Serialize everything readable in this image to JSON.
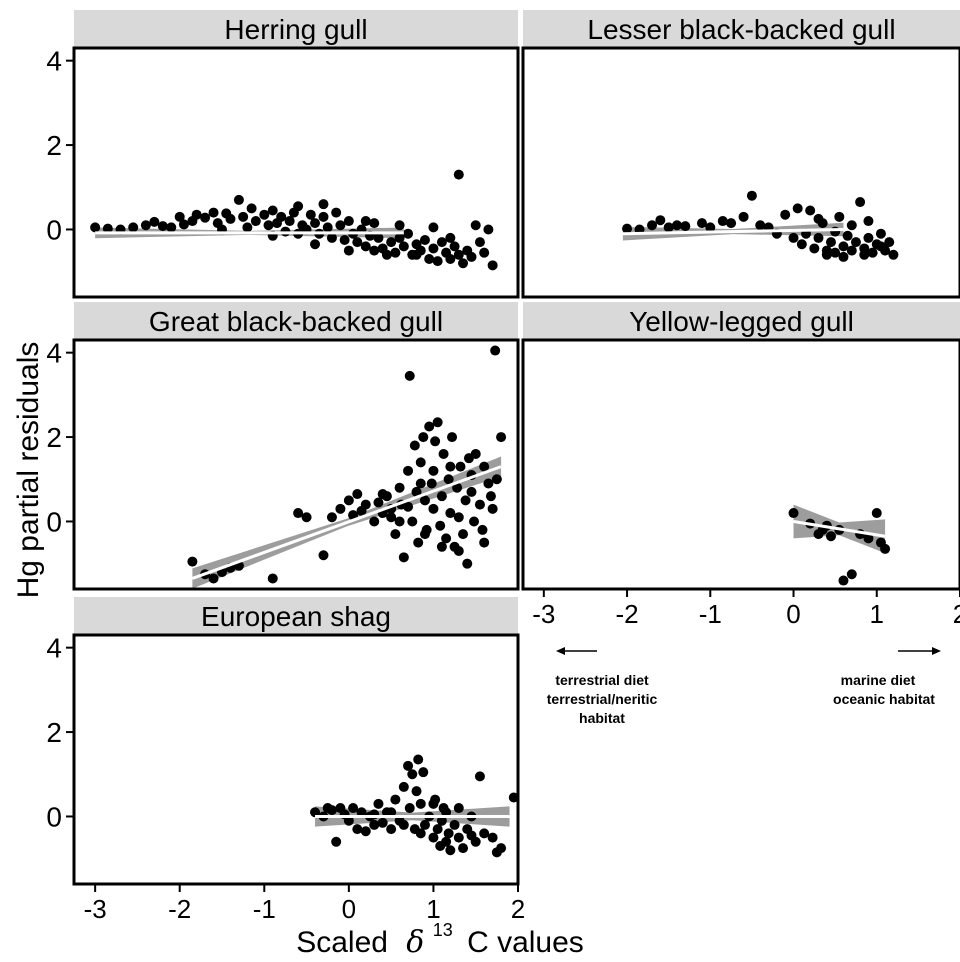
{
  "chart_data": {
    "type": "scatter",
    "ylabel": "Hg partial residuals",
    "xlabel": {
      "prefix": "Scaled",
      "symbol": "δ",
      "superscript": "13",
      "suffix": "C values"
    },
    "xlim": [
      -3.25,
      2.0
    ],
    "ylim": [
      -1.6,
      4.3
    ],
    "x_ticks": [
      -3,
      -2,
      -1,
      0,
      1,
      2
    ],
    "y_ticks": [
      0,
      2,
      4
    ],
    "colors": {
      "points": "#000000",
      "band": "#8c8c8c",
      "fit": "#ffffff",
      "strip": "#d9d9d9"
    },
    "annotations": {
      "left": [
        "terrestrial diet",
        "terrestrial/neritic",
        "habitat"
      ],
      "right": [
        "marine diet",
        "oceanic habitat"
      ]
    },
    "panels": [
      {
        "title": "Herring gull",
        "fit": {
          "x": [
            -3.0,
            0.65
          ],
          "y": [
            -0.08,
            -0.08
          ],
          "se": 0.08
        },
        "points": [
          [
            -3.0,
            0.05
          ],
          [
            -2.85,
            0.02
          ],
          [
            -2.7,
            0.0
          ],
          [
            -2.55,
            0.05
          ],
          [
            -2.4,
            0.1
          ],
          [
            -2.3,
            0.18
          ],
          [
            -2.2,
            0.08
          ],
          [
            -2.1,
            0.05
          ],
          [
            -2.0,
            0.3
          ],
          [
            -1.95,
            0.12
          ],
          [
            -1.85,
            0.2
          ],
          [
            -1.8,
            0.35
          ],
          [
            -1.7,
            0.28
          ],
          [
            -1.6,
            0.4
          ],
          [
            -1.55,
            0.15
          ],
          [
            -1.45,
            0.38
          ],
          [
            -1.4,
            0.25
          ],
          [
            -1.3,
            0.7
          ],
          [
            -1.25,
            0.3
          ],
          [
            -1.2,
            0.05
          ],
          [
            -1.15,
            0.5
          ],
          [
            -1.1,
            0.2
          ],
          [
            -1.0,
            0.35
          ],
          [
            -0.95,
            0.1
          ],
          [
            -0.9,
            0.45
          ],
          [
            -0.85,
            0.15
          ],
          [
            -0.8,
            0.3
          ],
          [
            -0.75,
            -0.05
          ],
          [
            -0.7,
            0.2
          ],
          [
            -0.65,
            0.4
          ],
          [
            -0.6,
            0.55
          ],
          [
            -0.55,
            0.1
          ],
          [
            -0.5,
            0.0
          ],
          [
            -0.45,
            0.35
          ],
          [
            -0.4,
            0.15
          ],
          [
            -0.35,
            -0.1
          ],
          [
            -0.3,
            0.3
          ],
          [
            -0.25,
            0.05
          ],
          [
            -0.2,
            -0.2
          ],
          [
            -0.15,
            0.4
          ],
          [
            -0.1,
            0.1
          ],
          [
            -0.05,
            -0.25
          ],
          [
            0.0,
            0.2
          ],
          [
            0.05,
            -0.1
          ],
          [
            0.1,
            -0.3
          ],
          [
            0.15,
            0.0
          ],
          [
            0.2,
            -0.4
          ],
          [
            0.25,
            -0.15
          ],
          [
            0.3,
            -0.5
          ],
          [
            0.35,
            -0.2
          ],
          [
            0.4,
            -0.45
          ],
          [
            0.45,
            -0.6
          ],
          [
            0.5,
            -0.3
          ],
          [
            0.55,
            -0.55
          ],
          [
            0.6,
            -0.2
          ],
          [
            0.65,
            -0.4
          ],
          [
            0.7,
            -0.1
          ],
          [
            0.75,
            -0.6
          ],
          [
            0.8,
            -0.35
          ],
          [
            0.85,
            -0.5
          ],
          [
            0.9,
            -0.25
          ],
          [
            0.95,
            -0.7
          ],
          [
            1.0,
            -0.45
          ],
          [
            1.05,
            -0.75
          ],
          [
            1.1,
            -0.3
          ],
          [
            1.15,
            -0.55
          ],
          [
            1.2,
            -0.7
          ],
          [
            1.25,
            -0.4
          ],
          [
            1.3,
            -0.6
          ],
          [
            1.35,
            -0.8
          ],
          [
            1.4,
            -0.5
          ],
          [
            1.45,
            -0.65
          ],
          [
            1.5,
            0.1
          ],
          [
            1.55,
            -0.3
          ],
          [
            1.6,
            -0.55
          ],
          [
            1.65,
            0.0
          ],
          [
            1.7,
            -0.85
          ],
          [
            1.3,
            1.3
          ],
          [
            -0.4,
            -0.35
          ],
          [
            0.0,
            -0.5
          ],
          [
            0.2,
            0.2
          ],
          [
            -0.6,
            -0.1
          ],
          [
            -0.9,
            -0.15
          ],
          [
            -1.5,
            0.0
          ],
          [
            0.6,
            0.1
          ],
          [
            1.0,
            0.05
          ],
          [
            0.3,
            0.15
          ],
          [
            -0.3,
            0.6
          ],
          [
            0.8,
            -0.6
          ],
          [
            1.2,
            -0.2
          ]
        ]
      },
      {
        "title": "Lesser black-backed gull",
        "fit": {
          "x": [
            -2.05,
            0.6
          ],
          "y": [
            -0.1,
            0.0
          ],
          "se": 0.1
        },
        "points": [
          [
            -2.0,
            0.02
          ],
          [
            -1.85,
            0.0
          ],
          [
            -1.7,
            0.1
          ],
          [
            -1.6,
            0.22
          ],
          [
            -1.5,
            0.05
          ],
          [
            -1.4,
            0.1
          ],
          [
            -1.3,
            0.08
          ],
          [
            -1.1,
            0.15
          ],
          [
            -1.0,
            0.05
          ],
          [
            -0.85,
            0.2
          ],
          [
            -0.75,
            0.15
          ],
          [
            -0.6,
            0.3
          ],
          [
            -0.5,
            0.8
          ],
          [
            -0.4,
            0.1
          ],
          [
            -0.3,
            0.05
          ],
          [
            -0.2,
            -0.1
          ],
          [
            -0.1,
            0.35
          ],
          [
            0.0,
            -0.2
          ],
          [
            0.05,
            0.5
          ],
          [
            0.1,
            -0.35
          ],
          [
            0.15,
            -0.1
          ],
          [
            0.2,
            0.45
          ],
          [
            0.25,
            -0.45
          ],
          [
            0.3,
            -0.2
          ],
          [
            0.35,
            0.15
          ],
          [
            0.4,
            -0.5
          ],
          [
            0.45,
            -0.3
          ],
          [
            0.5,
            -0.55
          ],
          [
            0.55,
            0.3
          ],
          [
            0.6,
            -0.4
          ],
          [
            0.65,
            -0.15
          ],
          [
            0.7,
            -0.5
          ],
          [
            0.75,
            -0.3
          ],
          [
            0.8,
            0.65
          ],
          [
            0.85,
            -0.45
          ],
          [
            0.9,
            -0.2
          ],
          [
            0.95,
            -0.55
          ],
          [
            1.0,
            -0.35
          ],
          [
            1.05,
            -0.1
          ],
          [
            1.1,
            -0.5
          ],
          [
            1.15,
            -0.3
          ],
          [
            1.2,
            -0.6
          ],
          [
            0.3,
            0.25
          ],
          [
            0.5,
            -0.05
          ],
          [
            0.7,
            0.1
          ],
          [
            0.9,
            0.2
          ],
          [
            1.05,
            -0.4
          ],
          [
            0.4,
            -0.6
          ],
          [
            0.6,
            -0.65
          ],
          [
            0.85,
            -0.6
          ]
        ]
      },
      {
        "title": "Great black-backed gull",
        "fit": {
          "x": [
            -1.85,
            1.8
          ],
          "y": [
            -1.35,
            1.3
          ],
          "se": 0.15
        },
        "points": [
          [
            -1.85,
            -0.95
          ],
          [
            -1.7,
            -1.25
          ],
          [
            -1.6,
            -1.35
          ],
          [
            -1.5,
            -1.2
          ],
          [
            -1.4,
            -1.1
          ],
          [
            -1.3,
            -1.05
          ],
          [
            -0.9,
            -1.35
          ],
          [
            -0.6,
            0.2
          ],
          [
            -0.5,
            0.1
          ],
          [
            -0.3,
            -0.8
          ],
          [
            -0.2,
            0.1
          ],
          [
            -0.1,
            0.3
          ],
          [
            0.0,
            0.5
          ],
          [
            0.05,
            0.15
          ],
          [
            0.1,
            0.65
          ],
          [
            0.15,
            0.25
          ],
          [
            0.2,
            0.4
          ],
          [
            0.3,
            0.0
          ],
          [
            0.35,
            0.45
          ],
          [
            0.4,
            0.2
          ],
          [
            0.45,
            0.6
          ],
          [
            0.5,
            0.1
          ],
          [
            0.55,
            -0.3
          ],
          [
            0.6,
            0.8
          ],
          [
            0.62,
            0.4
          ],
          [
            0.65,
            -0.85
          ],
          [
            0.7,
            1.2
          ],
          [
            0.72,
            3.45
          ],
          [
            0.75,
            0.0
          ],
          [
            0.78,
            1.8
          ],
          [
            0.8,
            0.7
          ],
          [
            0.82,
            -0.5
          ],
          [
            0.85,
            1.4
          ],
          [
            0.88,
            2.0
          ],
          [
            0.9,
            0.5
          ],
          [
            0.92,
            -0.2
          ],
          [
            0.95,
            2.25
          ],
          [
            0.98,
            0.9
          ],
          [
            1.0,
            0.3
          ],
          [
            1.02,
            1.9
          ],
          [
            1.05,
            2.35
          ],
          [
            1.08,
            -0.1
          ],
          [
            1.1,
            0.6
          ],
          [
            1.12,
            1.6
          ],
          [
            1.15,
            -0.4
          ],
          [
            1.18,
            1.0
          ],
          [
            1.2,
            0.2
          ],
          [
            1.22,
            2.0
          ],
          [
            1.25,
            -0.6
          ],
          [
            1.28,
            0.8
          ],
          [
            1.3,
            0.1
          ],
          [
            1.32,
            1.3
          ],
          [
            1.35,
            -0.3
          ],
          [
            1.38,
            0.5
          ],
          [
            1.4,
            -1.0
          ],
          [
            1.42,
            1.5
          ],
          [
            1.45,
            0.7
          ],
          [
            1.48,
            0.0
          ],
          [
            1.5,
            1.6
          ],
          [
            1.55,
            0.4
          ],
          [
            1.6,
            -0.5
          ],
          [
            1.65,
            0.9
          ],
          [
            1.7,
            0.3
          ],
          [
            1.73,
            4.05
          ],
          [
            1.75,
            1.0
          ],
          [
            1.8,
            2.0
          ],
          [
            1.68,
            0.6
          ],
          [
            1.58,
            -0.2
          ],
          [
            0.6,
            0.0
          ],
          [
            0.4,
            0.65
          ],
          [
            0.9,
            -0.3
          ],
          [
            1.1,
            -0.6
          ],
          [
            1.3,
            -0.7
          ],
          [
            0.7,
            0.35
          ],
          [
            1.0,
            1.2
          ],
          [
            1.2,
            1.3
          ],
          [
            0.85,
            0.9
          ],
          [
            1.45,
            1.1
          ],
          [
            1.6,
            1.3
          ],
          [
            0.5,
            0.3
          ]
        ]
      },
      {
        "title": "Yellow-legged gull",
        "fit": {
          "x": [
            0.0,
            1.1
          ],
          "y": [
            0.0,
            -0.35
          ],
          "se": 0.25
        },
        "points": [
          [
            0.0,
            0.2
          ],
          [
            0.2,
            -0.05
          ],
          [
            0.3,
            -0.3
          ],
          [
            0.4,
            -0.1
          ],
          [
            0.45,
            -0.35
          ],
          [
            0.55,
            -0.2
          ],
          [
            0.6,
            -1.4
          ],
          [
            0.7,
            -1.25
          ],
          [
            0.8,
            -0.3
          ],
          [
            1.0,
            0.2
          ],
          [
            1.05,
            -0.5
          ],
          [
            1.1,
            -0.65
          ],
          [
            0.9,
            -0.4
          ],
          [
            0.35,
            -0.2
          ]
        ]
      },
      {
        "title": "European shag",
        "fit": {
          "x": [
            -0.4,
            1.9
          ],
          "y": [
            0.0,
            0.0
          ],
          "se": 0.15
        },
        "points": [
          [
            -0.4,
            0.1
          ],
          [
            -0.3,
            0.0
          ],
          [
            -0.2,
            0.15
          ],
          [
            -0.15,
            -0.6
          ],
          [
            -0.1,
            0.2
          ],
          [
            -0.05,
            0.05
          ],
          [
            0.0,
            -0.1
          ],
          [
            0.05,
            0.2
          ],
          [
            0.1,
            -0.3
          ],
          [
            0.15,
            0.1
          ],
          [
            0.2,
            -0.35
          ],
          [
            0.25,
            0.0
          ],
          [
            0.3,
            -0.2
          ],
          [
            0.35,
            0.3
          ],
          [
            0.4,
            -0.15
          ],
          [
            0.45,
            0.1
          ],
          [
            0.5,
            -0.3
          ],
          [
            0.55,
            0.4
          ],
          [
            0.6,
            -0.1
          ],
          [
            0.65,
            0.7
          ],
          [
            0.7,
            1.2
          ],
          [
            0.72,
            0.2
          ],
          [
            0.75,
            1.0
          ],
          [
            0.78,
            -0.3
          ],
          [
            0.8,
            0.6
          ],
          [
            0.82,
            1.35
          ],
          [
            0.85,
            0.3
          ],
          [
            0.88,
            1.05
          ],
          [
            0.9,
            -0.2
          ],
          [
            0.95,
            0.0
          ],
          [
            1.0,
            -0.5
          ],
          [
            1.02,
            0.4
          ],
          [
            1.05,
            -0.3
          ],
          [
            1.08,
            -0.7
          ],
          [
            1.1,
            -0.1
          ],
          [
            1.12,
            0.2
          ],
          [
            1.15,
            -0.6
          ],
          [
            1.18,
            -0.4
          ],
          [
            1.2,
            -0.8
          ],
          [
            1.25,
            -0.2
          ],
          [
            1.3,
            -0.5
          ],
          [
            1.35,
            -0.75
          ],
          [
            1.4,
            -0.3
          ],
          [
            1.45,
            0.0
          ],
          [
            1.5,
            -0.6
          ],
          [
            1.55,
            0.95
          ],
          [
            1.6,
            -0.4
          ],
          [
            1.7,
            -0.5
          ],
          [
            1.75,
            -0.85
          ],
          [
            1.8,
            -0.75
          ],
          [
            1.95,
            0.45
          ],
          [
            -0.25,
            0.2
          ],
          [
            0.5,
            0.1
          ],
          [
            0.65,
            -0.2
          ],
          [
            0.85,
            -0.4
          ],
          [
            1.0,
            0.3
          ],
          [
            1.15,
            0.1
          ],
          [
            1.3,
            0.2
          ],
          [
            1.45,
            -0.45
          ],
          [
            0.3,
            0.05
          ]
        ]
      }
    ]
  }
}
